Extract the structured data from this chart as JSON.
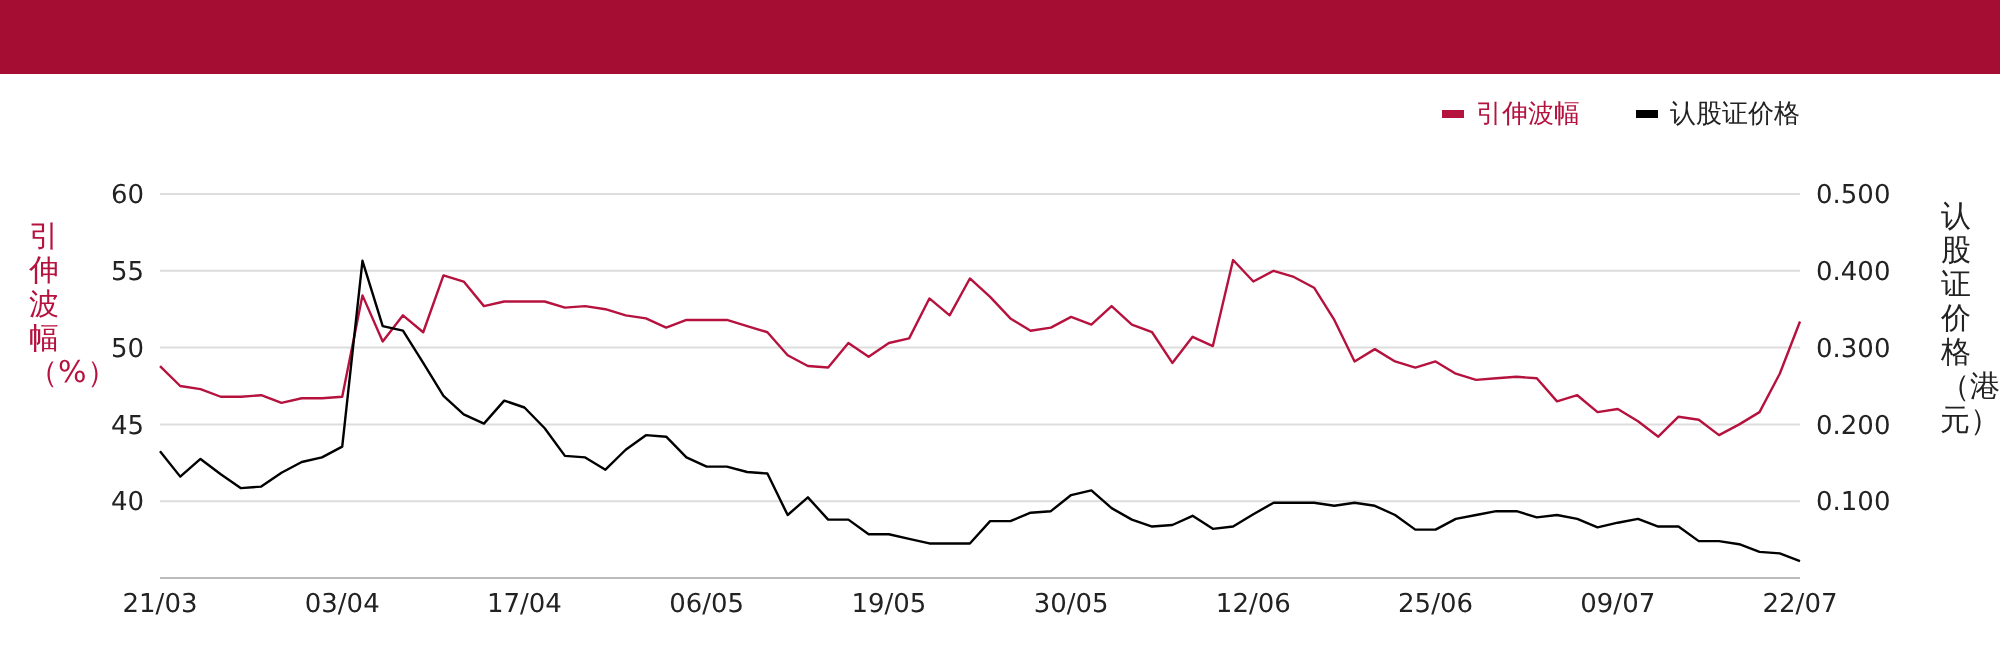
{
  "chart_data": {
    "type": "line",
    "categories": [
      "21/03",
      null,
      null,
      null,
      null,
      null,
      null,
      null,
      null,
      "03/04",
      null,
      null,
      null,
      null,
      null,
      null,
      null,
      null,
      "17/04",
      null,
      null,
      null,
      null,
      null,
      null,
      null,
      null,
      "06/05",
      null,
      null,
      null,
      null,
      null,
      null,
      null,
      null,
      "19/05",
      null,
      null,
      null,
      null,
      null,
      null,
      null,
      null,
      "30/05",
      null,
      null,
      null,
      null,
      null,
      null,
      null,
      null,
      "12/06",
      null,
      null,
      null,
      null,
      null,
      null,
      null,
      null,
      "25/06",
      null,
      null,
      null,
      null,
      null,
      null,
      null,
      null,
      "09/07",
      null,
      null,
      null,
      null,
      null,
      null,
      null,
      null,
      "22/07"
    ],
    "series": [
      {
        "name": "引伸波幅",
        "color": "#b5123e",
        "values": [
          48.8,
          47.5,
          47.3,
          46.8,
          46.8,
          46.9,
          46.4,
          46.7,
          46.7,
          46.8,
          53.4,
          50.4,
          52.1,
          51.0,
          54.7,
          54.3,
          52.7,
          53.0,
          53.0,
          53.0,
          52.6,
          52.7,
          52.5,
          52.1,
          51.9,
          51.3,
          51.8,
          51.8,
          51.8,
          51.4,
          51.0,
          49.5,
          48.8,
          48.7,
          50.3,
          49.4,
          50.3,
          50.6,
          53.2,
          52.1,
          54.5,
          53.3,
          51.9,
          51.1,
          51.3,
          52.0,
          51.5,
          52.7,
          51.5,
          51.0,
          49.0,
          50.7,
          50.1,
          55.7,
          54.3,
          55.0,
          54.6,
          53.9,
          51.8,
          49.1,
          49.9,
          49.1,
          48.7,
          49.1,
          48.3,
          47.9,
          48.0,
          48.1,
          48.0,
          46.5,
          46.9,
          45.8,
          46.0,
          45.2,
          44.2,
          45.5,
          45.3,
          44.3,
          45.0,
          45.8,
          48.3,
          51.7
        ]
      },
      {
        "name": "认股证价格",
        "color": "#000000",
        "axis": "y2",
        "values": [
          0.165,
          0.132,
          0.155,
          0.135,
          0.117,
          0.119,
          0.137,
          0.151,
          0.157,
          0.171,
          0.413,
          0.328,
          0.322,
          0.28,
          0.237,
          0.213,
          0.201,
          0.231,
          0.222,
          0.195,
          0.159,
          0.157,
          0.141,
          0.167,
          0.186,
          0.184,
          0.157,
          0.145,
          0.145,
          0.138,
          0.136,
          0.082,
          0.105,
          0.076,
          0.076,
          0.057,
          0.057,
          0.051,
          0.045,
          0.045,
          0.045,
          0.074,
          0.074,
          0.085,
          0.087,
          0.108,
          0.114,
          0.091,
          0.076,
          0.067,
          0.069,
          0.081,
          0.064,
          0.067,
          0.083,
          0.098,
          0.098,
          0.098,
          0.094,
          0.098,
          0.094,
          0.082,
          0.063,
          0.063,
          0.077,
          0.082,
          0.087,
          0.087,
          0.079,
          0.082,
          0.077,
          0.066,
          0.072,
          0.077,
          0.067,
          0.067,
          0.048,
          0.048,
          0.044,
          0.034,
          0.032,
          0.022
        ]
      }
    ],
    "ylabel": "引伸波幅（%）",
    "y2label": "认股证价格（港元）",
    "ylim": [
      35,
      60
    ],
    "yticks": [
      40,
      45,
      50,
      55,
      60
    ],
    "y2lim": [
      0,
      0.5
    ],
    "y2ticks": [
      {
        "value": 0.1,
        "label": "0.100"
      },
      {
        "value": 0.2,
        "label": "0.200"
      },
      {
        "value": 0.3,
        "label": "0.300"
      },
      {
        "value": 0.4,
        "label": "0.400"
      },
      {
        "value": 0.5,
        "label": "0.500"
      }
    ],
    "grid": "y",
    "legend": "top right",
    "marker": "none",
    "line_style": "solid"
  }
}
